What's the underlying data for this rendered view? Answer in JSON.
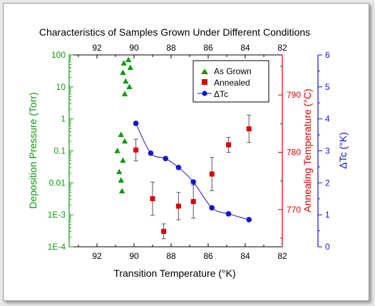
{
  "chart_data": {
    "type": "scatter",
    "title": "Characteristics of Samples Grown Under Different Conditions",
    "xlabel": "Transition Temperature (°K)",
    "x_ticks": [
      "92",
      "90",
      "88",
      "86",
      "84",
      "82"
    ],
    "xlim": [
      93.5,
      82
    ],
    "axes": {
      "pressure": {
        "label": "Deposition Pressure (Torr)",
        "scale": "log",
        "ylim": [
          0.0001,
          100
        ],
        "ticks": [
          "1E-4",
          "1E-3",
          "0.01",
          "0.1",
          "1",
          "10",
          "100"
        ],
        "color": "#119911"
      },
      "anneal": {
        "label": "Annealing Temperature (°C)",
        "scale": "linear",
        "ylim": [
          763.5,
          797
        ],
        "ticks": [
          "770",
          "780",
          "790"
        ],
        "color": "#dd0000"
      },
      "dtc": {
        "label": "ΔTc (°K)",
        "scale": "linear",
        "ylim": [
          0,
          6
        ],
        "ticks": [
          "0",
          "1",
          "2",
          "3",
          "4",
          "5",
          "6"
        ],
        "color": "#1515cc"
      }
    },
    "legend": {
      "placement": "top-right",
      "entries": [
        {
          "label": "As Grown",
          "color": "#119911",
          "marker": "triangle"
        },
        {
          "label": "Annealed",
          "color": "#dd0000",
          "marker": "square"
        },
        {
          "label": "ΔTc",
          "color": "#1515cc",
          "marker": "circle-line"
        }
      ]
    },
    "series": [
      {
        "name": "As Grown",
        "axis": "pressure",
        "points": [
          {
            "x": 90.3,
            "y": 70
          },
          {
            "x": 90.55,
            "y": 55
          },
          {
            "x": 90.2,
            "y": 40
          },
          {
            "x": 90.6,
            "y": 28
          },
          {
            "x": 90.45,
            "y": 15
          },
          {
            "x": 90.25,
            "y": 10
          },
          {
            "x": 90.5,
            "y": 6
          },
          {
            "x": 90.7,
            "y": 0.32
          },
          {
            "x": 90.5,
            "y": 0.2
          },
          {
            "x": 90.9,
            "y": 0.1
          },
          {
            "x": 90.6,
            "y": 0.05
          },
          {
            "x": 90.8,
            "y": 0.022
          },
          {
            "x": 90.7,
            "y": 0.012
          },
          {
            "x": 90.65,
            "y": 0.0055
          }
        ]
      },
      {
        "name": "Annealed",
        "axis": "anneal",
        "points": [
          {
            "x": 89.9,
            "y": 780.4,
            "err": 1.9
          },
          {
            "x": 89.0,
            "y": 771.9,
            "err": 2.9
          },
          {
            "x": 88.4,
            "y": 766.2,
            "err": 1.3
          },
          {
            "x": 87.6,
            "y": 770.6,
            "err": 2.4
          },
          {
            "x": 86.8,
            "y": 771.4,
            "err": 2.9
          },
          {
            "x": 85.8,
            "y": 776.2,
            "err": 2.9
          },
          {
            "x": 84.9,
            "y": 781.3,
            "err": 1.3
          },
          {
            "x": 83.8,
            "y": 784.1,
            "err": 2.4
          }
        ]
      },
      {
        "name": "ΔTc",
        "axis": "dtc",
        "points": [
          {
            "x": 89.9,
            "y": 3.86
          },
          {
            "x": 89.1,
            "y": 2.93
          },
          {
            "x": 88.3,
            "y": 2.76
          },
          {
            "x": 87.6,
            "y": 2.48
          },
          {
            "x": 86.8,
            "y": 2.03
          },
          {
            "x": 85.8,
            "y": 1.22
          },
          {
            "x": 84.9,
            "y": 1.03
          },
          {
            "x": 83.8,
            "y": 0.85
          }
        ]
      }
    ],
    "grid": false
  }
}
